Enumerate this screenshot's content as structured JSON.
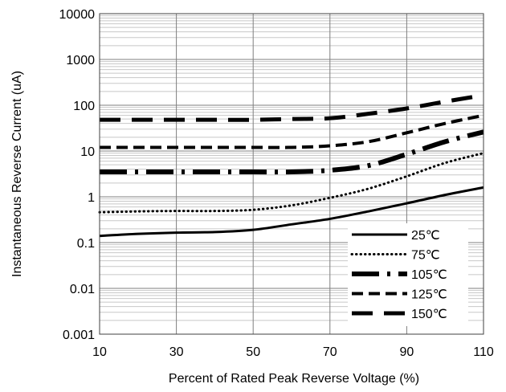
{
  "chart_data": {
    "type": "line",
    "title": "",
    "xlabel": "Percent of Rated Peak Reverse Voltage (%)",
    "ylabel": "Instantaneous Reverse Current (uA)",
    "xlim": [
      10,
      110
    ],
    "ylim": [
      0.001,
      10000
    ],
    "y_scale": "log",
    "x_ticks": [
      "10",
      "30",
      "50",
      "70",
      "90",
      "110"
    ],
    "x_tick_values": [
      10,
      30,
      50,
      70,
      90,
      110
    ],
    "y_ticks": [
      "10000",
      "1000",
      "100",
      "10",
      "1",
      "0.1",
      "0.01",
      "0.001"
    ],
    "y_tick_values": [
      10000,
      1000,
      100,
      10,
      1,
      0.1,
      0.01,
      0.001
    ],
    "grid": true,
    "legend_position": "bottom-right",
    "series": [
      {
        "name": "25℃",
        "dash": "solid",
        "x": [
          10,
          20,
          30,
          40,
          50,
          60,
          70,
          80,
          90,
          100,
          110
        ],
        "y": [
          0.14,
          0.155,
          0.165,
          0.17,
          0.19,
          0.25,
          0.33,
          0.48,
          0.72,
          1.1,
          1.6
        ]
      },
      {
        "name": "75℃",
        "dash": "dotted",
        "x": [
          10,
          20,
          30,
          40,
          50,
          60,
          70,
          80,
          90,
          100,
          110
        ],
        "y": [
          0.46,
          0.48,
          0.49,
          0.49,
          0.52,
          0.65,
          0.95,
          1.5,
          2.8,
          5.5,
          9
        ]
      },
      {
        "name": "105℃",
        "dash": "dash-dot",
        "x": [
          10,
          20,
          30,
          40,
          50,
          60,
          70,
          80,
          90,
          100,
          110
        ],
        "y": [
          3.5,
          3.5,
          3.5,
          3.5,
          3.5,
          3.5,
          3.8,
          4.8,
          8.5,
          16,
          26
        ]
      },
      {
        "name": "125℃",
        "dash": "dashed",
        "x": [
          10,
          20,
          30,
          40,
          50,
          60,
          70,
          80,
          90,
          100,
          110
        ],
        "y": [
          12,
          12,
          12,
          12,
          12,
          12,
          13,
          16,
          25,
          40,
          60
        ]
      },
      {
        "name": "150℃",
        "dash": "long-dash",
        "x": [
          10,
          20,
          30,
          40,
          50,
          60,
          70,
          80,
          90,
          100,
          110
        ],
        "y": [
          48,
          48,
          48,
          48,
          48,
          50,
          52,
          65,
          85,
          120,
          165
        ]
      }
    ]
  }
}
